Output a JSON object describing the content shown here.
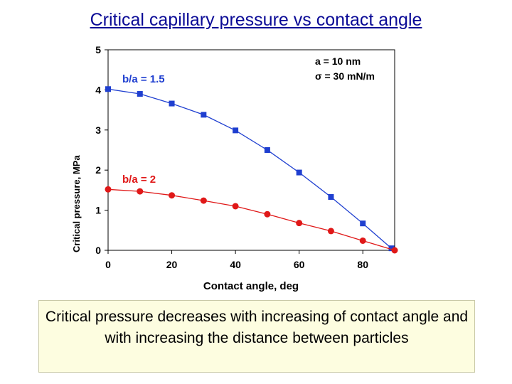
{
  "page": {
    "title": "Critical capillary pressure vs contact angle",
    "caption": "Critical pressure decreases with increasing of contact angle and with increasing the distance between particles"
  },
  "chart_data": {
    "type": "line",
    "title": "",
    "xlabel": "Contact angle, deg",
    "ylabel": "Critical pressure, MPa",
    "xlim": [
      0,
      90
    ],
    "ylim": [
      0,
      5
    ],
    "xticks": [
      0,
      20,
      40,
      60,
      80
    ],
    "yticks": [
      0,
      1,
      2,
      3,
      4,
      5
    ],
    "grid": false,
    "legend": "none",
    "parameters": [
      "a = 10 nm",
      "σ = 30 mN/m"
    ],
    "series": [
      {
        "name": "b/a = 1.5",
        "color": "#1f3fd0",
        "marker": "square",
        "x": [
          0,
          10,
          20,
          30,
          40,
          50,
          60,
          70,
          80,
          89
        ],
        "y": [
          4.02,
          3.9,
          3.66,
          3.38,
          2.99,
          2.5,
          1.94,
          1.33,
          0.67,
          0.05
        ]
      },
      {
        "name": "b/a = 2",
        "color": "#e01818",
        "marker": "circle",
        "x": [
          0,
          10,
          20,
          30,
          40,
          50,
          60,
          70,
          80,
          90
        ],
        "y": [
          1.52,
          1.47,
          1.37,
          1.24,
          1.1,
          0.9,
          0.68,
          0.48,
          0.24,
          0.0
        ]
      }
    ]
  }
}
